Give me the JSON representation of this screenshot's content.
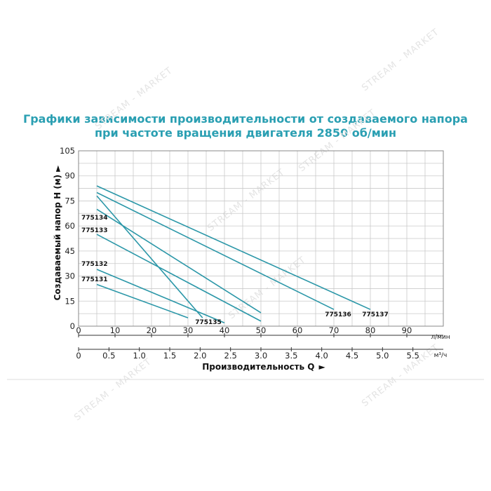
{
  "title_line1": "Графики зависимости производительности от создаваемого напора",
  "title_line2": "при частоте вращения двигателя 2850 об/мин",
  "watermark": "STREAM - MARKET",
  "chart_data": {
    "type": "line",
    "title": "Графики зависимости производительности от создаваемого напора при частоте вращения двигателя 2850 об/мин",
    "ylabel": "Создаваемый напор H (м)",
    "xlabel": "Производительность Q",
    "x_unit": "л/мин",
    "x2_unit": "м³/ч",
    "xlim": [
      0,
      100
    ],
    "ylim": [
      0,
      105
    ],
    "x_ticks": [
      "0",
      "10",
      "20",
      "30",
      "40",
      "50",
      "60",
      "70",
      "80",
      "90"
    ],
    "x_tick_values": [
      0,
      10,
      20,
      30,
      40,
      50,
      60,
      70,
      80,
      90
    ],
    "x2_ticks": [
      "0",
      "0.5",
      "1.0",
      "1.5",
      "2.0",
      "2.5",
      "3.0",
      "3.5",
      "4.0",
      "4.5",
      "5.0",
      "5.5"
    ],
    "x2_tick_values": [
      0,
      0.5,
      1.0,
      1.5,
      2.0,
      2.5,
      3.0,
      3.5,
      4.0,
      4.5,
      5.0,
      5.5
    ],
    "y_ticks": [
      "0",
      "15",
      "30",
      "45",
      "60",
      "75",
      "90",
      "105"
    ],
    "y_tick_values": [
      0,
      15,
      30,
      45,
      60,
      75,
      90,
      105
    ],
    "grid": true,
    "series": [
      {
        "name": "775137",
        "x": [
          5,
          80
        ],
        "y": [
          84,
          10
        ]
      },
      {
        "name": "775136",
        "x": [
          5,
          70
        ],
        "y": [
          80,
          10
        ]
      },
      {
        "name": "775135",
        "x": [
          5,
          34
        ],
        "y": [
          78,
          5
        ]
      },
      {
        "name": "775134",
        "x": [
          5,
          50
        ],
        "y": [
          70,
          8
        ]
      },
      {
        "name": "775133",
        "x": [
          5,
          50
        ],
        "y": [
          55,
          3
        ]
      },
      {
        "name": "775132",
        "x": [
          5,
          40
        ],
        "y": [
          34,
          2
        ]
      },
      {
        "name": "775131",
        "x": [
          5,
          30
        ],
        "y": [
          25,
          5
        ]
      }
    ],
    "labels": {
      "775137": "775137",
      "775136": "775136",
      "775135": "775135",
      "775134": "775134",
      "775133": "775133",
      "775132": "775132",
      "775131": "775131"
    }
  }
}
